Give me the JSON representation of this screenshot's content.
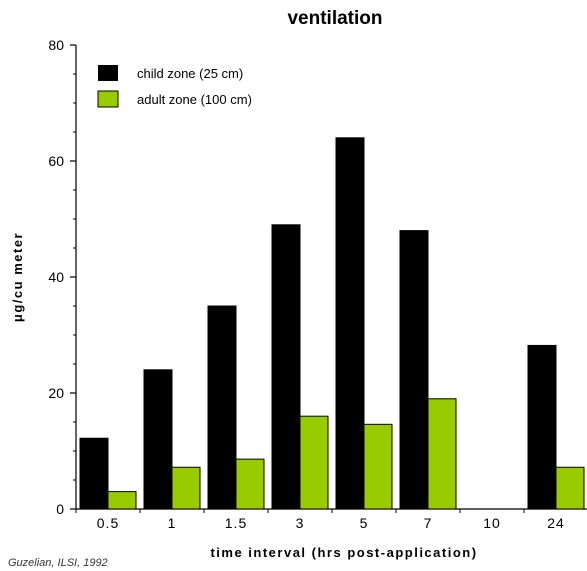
{
  "chart_data": {
    "type": "bar",
    "title": "ventilation",
    "xlabel": "time interval (hrs post-application)",
    "ylabel": "μg/cu meter",
    "ylim": [
      0,
      80
    ],
    "yticks": [
      0,
      20,
      40,
      60,
      80
    ],
    "categories": [
      "0.5",
      "1",
      "1.5",
      "3",
      "5",
      "7",
      "10",
      "24"
    ],
    "series": [
      {
        "name": "child zone (25 cm)",
        "color": "#000000",
        "values": [
          12.2,
          24,
          35,
          49,
          64,
          48,
          0,
          28.2
        ]
      },
      {
        "name": "adult zone (100 cm)",
        "color": "#99cc00",
        "values": [
          3,
          7.2,
          8.6,
          16,
          14.6,
          19,
          0,
          7.2
        ]
      }
    ],
    "legend_position": "top-left",
    "source_note": "Guzelian, ILSI, 1992"
  }
}
